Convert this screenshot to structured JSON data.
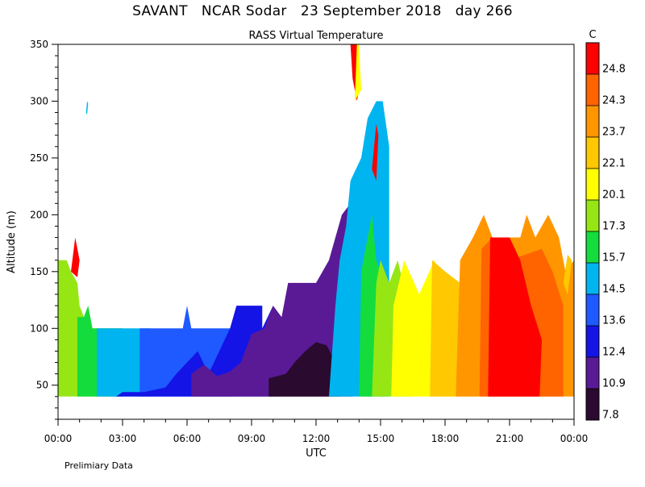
{
  "chart_data": {
    "type": "heatmap",
    "title": "SAVANT   NCAR Sodar   23 September 2018   day 266",
    "subtitle": "RASS Virtual Temperature",
    "xlabel": "UTC",
    "ylabel": "Altitude (m)",
    "footnote": "Prelimiary Data",
    "xlim": [
      0,
      24
    ],
    "ylim": [
      20,
      350
    ],
    "x_ticks": [
      0,
      3,
      6,
      9,
      12,
      15,
      18,
      21,
      24
    ],
    "x_tick_labels": [
      "00:00",
      "03:00",
      "06:00",
      "09:00",
      "12:00",
      "15:00",
      "18:00",
      "21:00",
      "00:00"
    ],
    "y_ticks": [
      50,
      100,
      150,
      200,
      250,
      300,
      350
    ],
    "y_tick_labels": [
      "50",
      "100",
      "150",
      "200",
      "250",
      "300",
      "350"
    ],
    "colorbar": {
      "unit": "C",
      "labels": [
        "7.8",
        "10.9",
        "12.4",
        "13.6",
        "14.5",
        "15.7",
        "17.3",
        "20.1",
        "22.1",
        "23.7",
        "24.3",
        "24.8"
      ],
      "colors": [
        "#2a0a2e",
        "#5a1a96",
        "#1414e6",
        "#1e5aff",
        "#00b4f0",
        "#14dc3c",
        "#96e614",
        "#ffff00",
        "#ffc800",
        "#ff9600",
        "#ff6400",
        "#ff0000"
      ]
    },
    "regions": [
      {
        "temp": 17.3,
        "poly": [
          [
            0.0,
            40
          ],
          [
            0.0,
            160
          ],
          [
            0.4,
            160
          ],
          [
            0.6,
            150
          ],
          [
            0.9,
            140
          ],
          [
            1.0,
            120
          ],
          [
            1.2,
            110
          ],
          [
            1.5,
            100
          ],
          [
            3.0,
            100
          ],
          [
            3.0,
            40
          ]
        ]
      },
      {
        "temp": 15.7,
        "poly": [
          [
            0.9,
            40
          ],
          [
            0.9,
            110
          ],
          [
            1.2,
            110
          ],
          [
            1.4,
            120
          ],
          [
            1.6,
            100
          ],
          [
            3.0,
            100
          ],
          [
            3.0,
            40
          ]
        ]
      },
      {
        "temp": 14.5,
        "poly": [
          [
            1.8,
            40
          ],
          [
            1.8,
            100
          ],
          [
            4.3,
            100
          ],
          [
            4.3,
            40
          ]
        ]
      },
      {
        "temp": 13.6,
        "poly": [
          [
            3.8,
            40
          ],
          [
            3.8,
            100
          ],
          [
            5.8,
            100
          ],
          [
            6.0,
            120
          ],
          [
            6.2,
            100
          ],
          [
            8.0,
            100
          ],
          [
            8.0,
            40
          ]
        ]
      },
      {
        "temp": 12.4,
        "poly": [
          [
            2.7,
            40
          ],
          [
            3.0,
            44
          ],
          [
            4.0,
            44
          ],
          [
            5.0,
            48
          ],
          [
            5.5,
            60
          ],
          [
            6.0,
            70
          ],
          [
            6.5,
            80
          ],
          [
            7.0,
            60
          ],
          [
            7.5,
            80
          ],
          [
            8.0,
            100
          ],
          [
            8.3,
            120
          ],
          [
            9.5,
            120
          ],
          [
            9.5,
            100
          ],
          [
            10.0,
            120
          ],
          [
            10.0,
            40
          ]
        ]
      },
      {
        "temp": 10.9,
        "poly": [
          [
            6.2,
            40
          ],
          [
            6.2,
            60
          ],
          [
            6.8,
            68
          ],
          [
            7.4,
            58
          ],
          [
            8.0,
            62
          ],
          [
            8.5,
            70
          ],
          [
            9.0,
            95
          ],
          [
            9.6,
            100
          ],
          [
            10.0,
            120
          ],
          [
            10.4,
            110
          ],
          [
            10.7,
            140
          ],
          [
            12.0,
            140
          ],
          [
            12.6,
            160
          ],
          [
            12.9,
            180
          ],
          [
            13.2,
            200
          ],
          [
            13.6,
            210
          ],
          [
            13.7,
            40
          ]
        ]
      },
      {
        "temp": 7.8,
        "poly": [
          [
            9.8,
            40
          ],
          [
            9.8,
            56
          ],
          [
            10.6,
            60
          ],
          [
            11.0,
            70
          ],
          [
            11.5,
            80
          ],
          [
            12.0,
            88
          ],
          [
            12.5,
            85
          ],
          [
            12.9,
            70
          ],
          [
            13.1,
            40
          ]
        ]
      },
      {
        "temp": 14.5,
        "poly": [
          [
            12.6,
            40
          ],
          [
            12.9,
            120
          ],
          [
            13.1,
            160
          ],
          [
            13.4,
            190
          ],
          [
            13.6,
            230
          ],
          [
            14.1,
            250
          ],
          [
            14.4,
            285
          ],
          [
            14.8,
            300
          ],
          [
            15.1,
            300
          ],
          [
            15.4,
            260
          ],
          [
            15.4,
            40
          ]
        ]
      },
      {
        "temp": 15.7,
        "poly": [
          [
            14.0,
            40
          ],
          [
            14.1,
            150
          ],
          [
            14.4,
            180
          ],
          [
            14.6,
            200
          ],
          [
            14.8,
            160
          ],
          [
            15.0,
            150
          ],
          [
            15.0,
            40
          ]
        ]
      },
      {
        "temp": 17.3,
        "poly": [
          [
            14.6,
            40
          ],
          [
            14.8,
            140
          ],
          [
            15.0,
            160
          ],
          [
            15.4,
            140
          ],
          [
            15.8,
            160
          ],
          [
            16.3,
            120
          ],
          [
            16.5,
            40
          ]
        ]
      },
      {
        "temp": 20.1,
        "poly": [
          [
            15.5,
            40
          ],
          [
            15.6,
            120
          ],
          [
            16.1,
            160
          ],
          [
            16.8,
            130
          ],
          [
            17.5,
            160
          ],
          [
            18.0,
            130
          ],
          [
            18.5,
            40
          ]
        ]
      },
      {
        "temp": 22.1,
        "poly": [
          [
            17.3,
            40
          ],
          [
            17.4,
            160
          ],
          [
            18.0,
            150
          ],
          [
            18.7,
            140
          ],
          [
            19.2,
            160
          ],
          [
            19.5,
            40
          ]
        ]
      },
      {
        "temp": 23.7,
        "poly": [
          [
            18.5,
            40
          ],
          [
            18.7,
            160
          ],
          [
            19.3,
            180
          ],
          [
            19.8,
            200
          ],
          [
            20.2,
            180
          ],
          [
            21.5,
            180
          ],
          [
            21.8,
            200
          ],
          [
            22.2,
            180
          ],
          [
            22.8,
            200
          ],
          [
            23.3,
            180
          ],
          [
            23.6,
            150
          ],
          [
            24.0,
            160
          ],
          [
            24.0,
            40
          ]
        ]
      },
      {
        "temp": 24.3,
        "poly": [
          [
            19.6,
            40
          ],
          [
            19.7,
            170
          ],
          [
            20.2,
            180
          ],
          [
            21.0,
            160
          ],
          [
            22.5,
            170
          ],
          [
            23.0,
            150
          ],
          [
            23.5,
            120
          ],
          [
            23.5,
            40
          ]
        ]
      },
      {
        "temp": 24.8,
        "poly": [
          [
            20.0,
            40
          ],
          [
            20.1,
            180
          ],
          [
            21.0,
            180
          ],
          [
            21.5,
            160
          ],
          [
            22.0,
            120
          ],
          [
            22.5,
            90
          ],
          [
            22.4,
            40
          ]
        ]
      },
      {
        "temp": 24.8,
        "poly": [
          [
            0.6,
            150
          ],
          [
            0.8,
            180
          ],
          [
            1.0,
            160
          ],
          [
            0.9,
            145
          ]
        ]
      },
      {
        "temp": 24.8,
        "poly": [
          [
            13.6,
            350
          ],
          [
            13.9,
            350
          ],
          [
            14.0,
            310
          ],
          [
            13.9,
            300
          ],
          [
            13.7,
            320
          ]
        ]
      },
      {
        "temp": 20.1,
        "poly": [
          [
            13.8,
            300
          ],
          [
            13.9,
            350
          ],
          [
            14.0,
            350
          ],
          [
            14.1,
            310
          ]
        ]
      },
      {
        "temp": 24.8,
        "poly": [
          [
            14.6,
            240
          ],
          [
            14.8,
            280
          ],
          [
            14.9,
            270
          ],
          [
            14.8,
            230
          ]
        ]
      },
      {
        "temp": 14.5,
        "poly": [
          [
            1.3,
            290
          ],
          [
            1.35,
            300
          ],
          [
            1.4,
            298
          ],
          [
            1.35,
            288
          ]
        ]
      },
      {
        "temp": 22.1,
        "poly": [
          [
            23.5,
            140
          ],
          [
            23.7,
            165
          ],
          [
            23.9,
            160
          ],
          [
            23.7,
            130
          ]
        ]
      }
    ]
  }
}
